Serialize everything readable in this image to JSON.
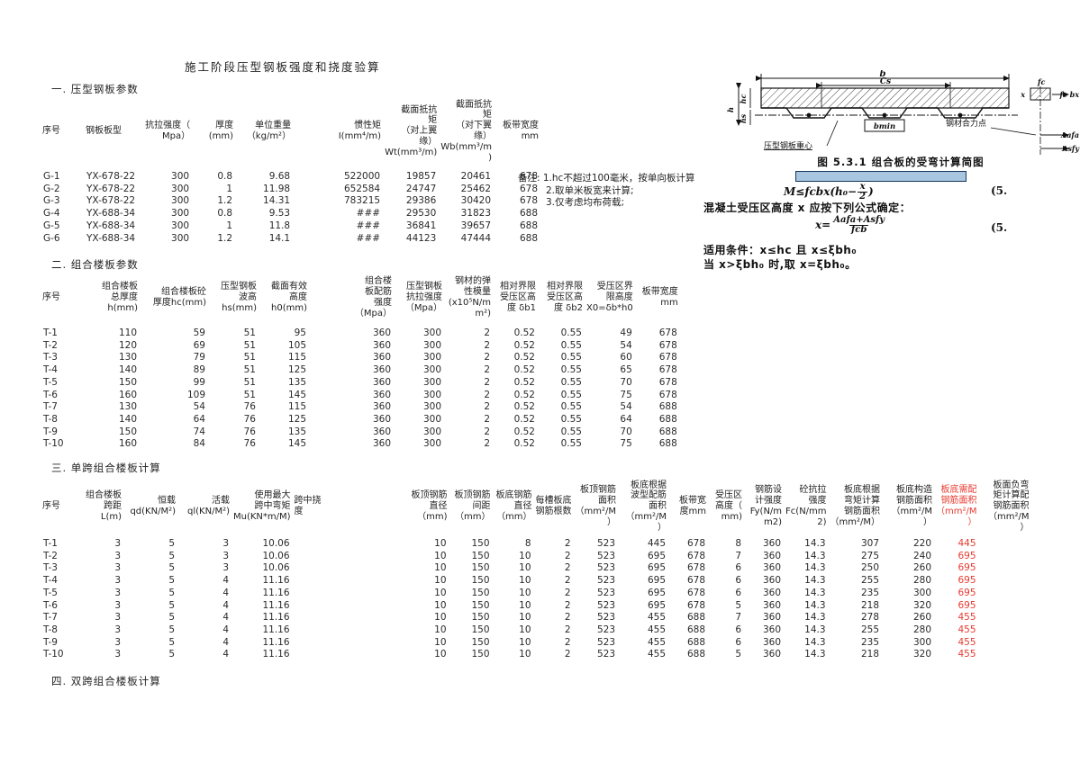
{
  "title": "施工阶段压型钢板强度和挠度验算",
  "sections": {
    "s1": "一. 压型钢板参数",
    "s2": "二. 组合楼板参数",
    "s3": "三. 单跨组合楼板计算",
    "s4": "四. 双跨组合楼板计算"
  },
  "notes": {
    "line1": "备注: 1.hc不超过100毫米，按单向板计算",
    "line2": "2.取单米板宽来计算;",
    "line3": "3.仅考虑均布荷载;"
  },
  "colors": {
    "red_text": "#e8392f",
    "highlight_fill": "#a9c6e0",
    "highlight_border": "#17375e"
  },
  "figure": {
    "caption": "图 5.3.1  组合板的受弯计算简图",
    "label_b": "b",
    "label_cs": "Cs",
    "label_h": "h",
    "label_hc": "hc",
    "label_hs": "hs",
    "label_centroid": "压型钢板重心",
    "label_bmin": "bmin",
    "label_fc": "fc",
    "label_x": "x",
    "label_fcbx": "fc bx",
    "label_resultant": "钢材合力点",
    "label_aafa": "Aafa",
    "label_asfy": "Asfy"
  },
  "formulas": {
    "f1_left": "M≤fcbx(h₀−",
    "f1_num": "x",
    "f1_den": "2",
    "f1_right": ")",
    "f1_tag": "(5.",
    "cond1": "混凝土受压区高度 x 应按下列公式确定：",
    "f2_lhs": "x=",
    "f2_num": "Aafa+Asfy",
    "f2_den": "fcb",
    "f2_tag": "(5.",
    "cond2": "适用条件：x≤hc 且 x≤ξbh₀",
    "cond3": "当 x>ξbh₀ 时,取 x=ξbh₀。"
  },
  "tables": {
    "t1": {
      "columns": [
        "序号",
        "钢板板型",
        "抗拉强度（\nMpa）",
        "厚度(mm)",
        "单位重量\n（kg/m²）",
        "惯性矩\nI(mm⁴/m)",
        "截面抵抗\n矩\n（对上翼\n缘）\nWt(mm³/m)",
        "截面抵抗\n矩\n（对下翼\n缘）\nWb(mm³/m\n)",
        "板带宽度\nmm"
      ],
      "rows": [
        [
          "G-1",
          "YX-678-22",
          "300",
          "0.8",
          "9.68",
          "522000",
          "19857",
          "20461",
          "678"
        ],
        [
          "G-2",
          "YX-678-22",
          "300",
          "1",
          "11.98",
          "652584",
          "24747",
          "25462",
          "678"
        ],
        [
          "G-3",
          "YX-678-22",
          "300",
          "1.2",
          "14.31",
          "783215",
          "29386",
          "30420",
          "678"
        ],
        [
          "G-4",
          "YX-688-34",
          "300",
          "0.8",
          "9.53",
          "###",
          "29530",
          "31823",
          "688"
        ],
        [
          "G-5",
          "YX-688-34",
          "300",
          "1",
          "11.8",
          "###",
          "36841",
          "39657",
          "688"
        ],
        [
          "G-6",
          "YX-688-34",
          "300",
          "1.2",
          "14.1",
          "###",
          "44123",
          "47444",
          "688"
        ]
      ]
    },
    "t2": {
      "columns": [
        "序号",
        "组合楼板\n总厚度\nh(mm)",
        "组合楼板砼\n厚度hc(mm)",
        "压型钢板\n波高\nhs(mm)",
        "截面有效\n高度\nh0(mm)",
        "组合楼\n板配筋\n强度\n（Mpa）",
        "压型钢板\n抗拉强度\n（Mpa）",
        "钢材的弹\n性模量\n(x10⁵N/m\nm²)",
        "相对界限\n受压区高\n度 δb1",
        "相对界限\n受压区高\n度 δb2",
        "受压区界\n限高度\nX0=δb*h0",
        "板带宽度\nmm"
      ],
      "rows": [
        [
          "T-1",
          "110",
          "59",
          "51",
          "95",
          "360",
          "300",
          "2",
          "0.52",
          "0.55",
          "49",
          "678"
        ],
        [
          "T-2",
          "120",
          "69",
          "51",
          "105",
          "360",
          "300",
          "2",
          "0.52",
          "0.55",
          "54",
          "678"
        ],
        [
          "T-3",
          "130",
          "79",
          "51",
          "115",
          "360",
          "300",
          "2",
          "0.52",
          "0.55",
          "60",
          "678"
        ],
        [
          "T-4",
          "140",
          "89",
          "51",
          "125",
          "360",
          "300",
          "2",
          "0.52",
          "0.55",
          "65",
          "678"
        ],
        [
          "T-5",
          "150",
          "99",
          "51",
          "135",
          "360",
          "300",
          "2",
          "0.52",
          "0.55",
          "70",
          "678"
        ],
        [
          "T-6",
          "160",
          "109",
          "51",
          "145",
          "360",
          "300",
          "2",
          "0.52",
          "0.55",
          "75",
          "678"
        ],
        [
          "T-7",
          "130",
          "54",
          "76",
          "115",
          "360",
          "300",
          "2",
          "0.52",
          "0.55",
          "54",
          "688"
        ],
        [
          "T-8",
          "140",
          "64",
          "76",
          "125",
          "360",
          "300",
          "2",
          "0.52",
          "0.55",
          "64",
          "688"
        ],
        [
          "T-9",
          "150",
          "74",
          "76",
          "135",
          "360",
          "300",
          "2",
          "0.52",
          "0.55",
          "70",
          "688"
        ],
        [
          "T-10",
          "160",
          "84",
          "76",
          "145",
          "360",
          "300",
          "2",
          "0.52",
          "0.55",
          "75",
          "688"
        ]
      ]
    },
    "t3": {
      "columns": [
        "序号",
        "组合楼板\n跨距L(m)",
        "恒载\nqd(KN/M²)",
        "活载\nql(KN/M²)",
        "使用最大\n跨中弯矩\nMu(KN*m/M)",
        "跨中挠\n度",
        "板顶钢筋\n直径（mm)",
        "板顶钢筋\n间距\n（mm）",
        "板底钢筋\n直径\n（mm）",
        "每槽板底\n钢筋根数",
        "板顶钢筋\n面积\n（mm²/M\n）",
        "板底根据\n波型配筋\n面积\n（mm²/M\n）",
        "板带宽\n度mm",
        "受压区\n高度（\nmm)",
        "钢筋设\n计强度\nFy(N/m\nm2)",
        "砼抗拉\n强度\nFc(N/mm\n2)",
        "板底根据\n弯矩计算\n钢筋面积\n（mm²/M）",
        "板底构造\n钢筋面积\n（mm²/M\n）",
        "板底需配\n钢筋面积\n（mm²/M\n）",
        "板面负弯\n矩计算配\n钢筋面积\n（mm²/M\n）"
      ],
      "rows": [
        [
          "T-1",
          "3",
          "5",
          "3",
          "10.06",
          "",
          "10",
          "150",
          "8",
          "2",
          "523",
          "445",
          "678",
          "8",
          "360",
          "14.3",
          "307",
          "220",
          "445",
          ""
        ],
        [
          "T-2",
          "3",
          "5",
          "3",
          "10.06",
          "",
          "10",
          "150",
          "10",
          "2",
          "523",
          "695",
          "678",
          "7",
          "360",
          "14.3",
          "275",
          "240",
          "695",
          ""
        ],
        [
          "T-3",
          "3",
          "5",
          "3",
          "10.06",
          "",
          "10",
          "150",
          "10",
          "2",
          "523",
          "695",
          "678",
          "6",
          "360",
          "14.3",
          "250",
          "260",
          "695",
          ""
        ],
        [
          "T-4",
          "3",
          "5",
          "4",
          "11.16",
          "",
          "10",
          "150",
          "10",
          "2",
          "523",
          "695",
          "678",
          "6",
          "360",
          "14.3",
          "255",
          "280",
          "695",
          ""
        ],
        [
          "T-5",
          "3",
          "5",
          "4",
          "11.16",
          "",
          "10",
          "150",
          "10",
          "2",
          "523",
          "695",
          "678",
          "6",
          "360",
          "14.3",
          "235",
          "300",
          "695",
          ""
        ],
        [
          "T-6",
          "3",
          "5",
          "4",
          "11.16",
          "",
          "10",
          "150",
          "10",
          "2",
          "523",
          "695",
          "678",
          "5",
          "360",
          "14.3",
          "218",
          "320",
          "695",
          ""
        ],
        [
          "T-7",
          "3",
          "5",
          "4",
          "11.16",
          "",
          "10",
          "150",
          "10",
          "2",
          "523",
          "455",
          "688",
          "7",
          "360",
          "14.3",
          "278",
          "260",
          "455",
          ""
        ],
        [
          "T-8",
          "3",
          "5",
          "4",
          "11.16",
          "",
          "10",
          "150",
          "10",
          "2",
          "523",
          "455",
          "688",
          "6",
          "360",
          "14.3",
          "255",
          "280",
          "455",
          ""
        ],
        [
          "T-9",
          "3",
          "5",
          "4",
          "11.16",
          "",
          "10",
          "150",
          "10",
          "2",
          "523",
          "455",
          "688",
          "6",
          "360",
          "14.3",
          "235",
          "300",
          "455",
          ""
        ],
        [
          "T-10",
          "3",
          "5",
          "4",
          "11.16",
          "",
          "10",
          "150",
          "10",
          "2",
          "523",
          "455",
          "688",
          "5",
          "360",
          "14.3",
          "218",
          "320",
          "455",
          ""
        ]
      ]
    }
  }
}
